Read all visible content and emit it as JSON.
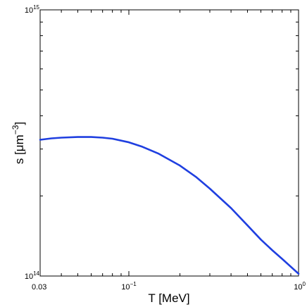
{
  "chart_data": {
    "type": "line",
    "title": "",
    "xlabel": "T [MeV]",
    "ylabel": {
      "prefix": "s [μm",
      "exponent": "−3",
      "suffix": "]"
    },
    "xscale": "log",
    "yscale": "log",
    "xlim": [
      0.03,
      1
    ],
    "ylim": [
      100000000000000.0,
      1000000000000000.0
    ],
    "grid": false,
    "legend": "none",
    "x_tick_labels": [
      {
        "value": 0.03,
        "text": "0.03"
      },
      {
        "value": 0.1,
        "base": "10",
        "exp": "−1"
      },
      {
        "value": 1,
        "base": "10",
        "exp": "0"
      }
    ],
    "y_tick_labels": [
      {
        "value": 100000000000000.0,
        "base": "10",
        "exp": "14"
      },
      {
        "value": 1000000000000000.0,
        "base": "10",
        "exp": "15"
      }
    ],
    "series": [
      {
        "color": "#1f3fe0",
        "x": [
          0.03,
          0.035,
          0.04,
          0.05,
          0.055,
          0.06,
          0.07,
          0.08,
          0.1,
          0.12,
          0.15,
          0.2,
          0.25,
          0.3,
          0.4,
          0.5,
          0.6,
          0.7,
          0.8,
          1.0
        ],
        "y": [
          325000000000000.0,
          329000000000000.0,
          331000000000000.0,
          333000000000000.0,
          333000000000000.0,
          333000000000000.0,
          331000000000000.0,
          328000000000000.0,
          318000000000000.0,
          306000000000000.0,
          288000000000000.0,
          260000000000000.0,
          235000000000000.0,
          213000000000000.0,
          180000000000000.0,
          155000000000000.0,
          137000000000000.0,
          125000000000000.0,
          116000000000000.0,
          102000000000000.0
        ]
      }
    ]
  }
}
